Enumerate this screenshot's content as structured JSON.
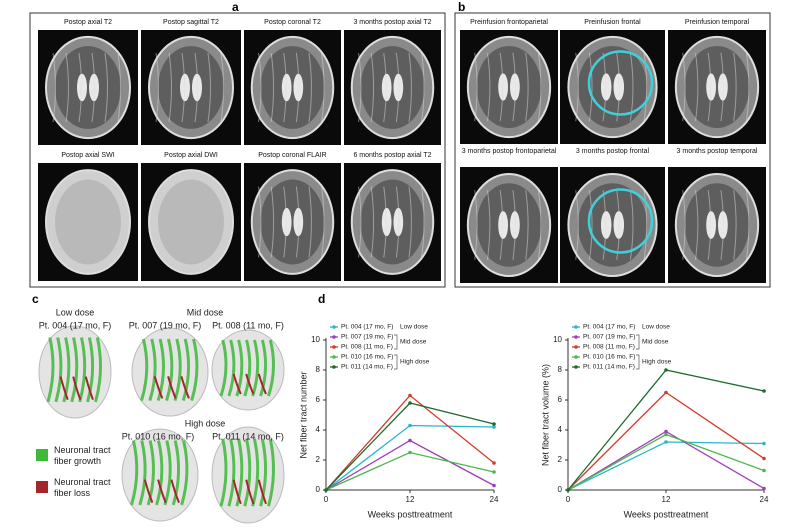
{
  "panels": {
    "a": {
      "label": "a",
      "captions": [
        "Postop axial T2",
        "Postop sagittal T2",
        "Postop coronal T2",
        "3 months postop axial T2",
        "Postop axial SWI",
        "Postop axial DWI",
        "Postop coronal FLAIR",
        "6 months postop axial T2"
      ]
    },
    "b": {
      "label": "b",
      "captions": [
        "Preinfusion frontoparietal",
        "Preinfusion frontal",
        "Preinfusion temporal",
        "3 months postop frontoparietal",
        "3 months postop frontal",
        "3 months postop temporal"
      ]
    },
    "c": {
      "label": "c",
      "doses": [
        "Low dose",
        "Mid dose",
        "High dose"
      ],
      "patients": [
        "Pt. 004 (17 mo, F)",
        "Pt. 007 (19 mo, F)",
        "Pt. 008 (11 mo, F)",
        "Pt. 010 (16 mo, F)",
        "Pt. 011 (14 mo, F)"
      ],
      "legend": [
        "Neuronal tract fiber growth",
        "Neuronal tract fiber loss"
      ]
    },
    "d": {
      "label": "d"
    }
  },
  "chart_data": [
    {
      "type": "line",
      "y_label": "Net fiber tract number",
      "x_label": "Weeks posttreatment",
      "x": [
        0,
        12,
        24
      ],
      "xlim": [
        0,
        24
      ],
      "xticks": [
        0,
        12,
        24
      ],
      "ylim": [
        0,
        10
      ],
      "yticks": [
        0,
        2,
        4,
        6,
        8,
        10
      ],
      "dose_groups": [
        "Low dose",
        "Mid dose",
        "High dose"
      ],
      "series": [
        {
          "name": "Pt. 004 (17 mo, F)",
          "color": "#2bb7c9",
          "values": [
            0,
            4.3,
            4.2
          ]
        },
        {
          "name": "Pt. 007 (19 mo, F)",
          "color": "#a03bbf",
          "values": [
            0,
            3.3,
            0.3
          ]
        },
        {
          "name": "Pt. 008 (11 mo, F)",
          "color": "#d43b2f",
          "values": [
            0,
            6.3,
            1.8
          ]
        },
        {
          "name": "Pt. 010 (16 mo, F)",
          "color": "#4cb84a",
          "values": [
            0,
            2.5,
            1.2
          ]
        },
        {
          "name": "Pt. 011 (14 mo, F)",
          "color": "#1f6b2c",
          "values": [
            0,
            5.8,
            4.4
          ]
        }
      ]
    },
    {
      "type": "line",
      "y_label": "Net fiber tract volume (%)",
      "x_label": "Weeks posttreatment",
      "x": [
        0,
        12,
        24
      ],
      "xlim": [
        0,
        24
      ],
      "xticks": [
        0,
        12,
        24
      ],
      "ylim": [
        0,
        10
      ],
      "yticks": [
        0,
        2,
        4,
        6,
        8,
        10
      ],
      "dose_groups": [
        "Low dose",
        "Mid dose",
        "High dose"
      ],
      "series": [
        {
          "name": "Pt. 004 (17 mo, F)",
          "color": "#2bb7c9",
          "values": [
            0,
            3.2,
            3.1
          ]
        },
        {
          "name": "Pt. 007 (19 mo, F)",
          "color": "#a03bbf",
          "values": [
            0,
            3.9,
            0.1
          ]
        },
        {
          "name": "Pt. 008 (11 mo, F)",
          "color": "#d43b2f",
          "values": [
            0,
            6.5,
            2.1
          ]
        },
        {
          "name": "Pt. 010 (16 mo, F)",
          "color": "#4cb84a",
          "values": [
            0,
            3.7,
            1.3
          ]
        },
        {
          "name": "Pt. 011 (14 mo, F)",
          "color": "#1f6b2c",
          "values": [
            0,
            8.0,
            6.6
          ]
        }
      ]
    }
  ]
}
